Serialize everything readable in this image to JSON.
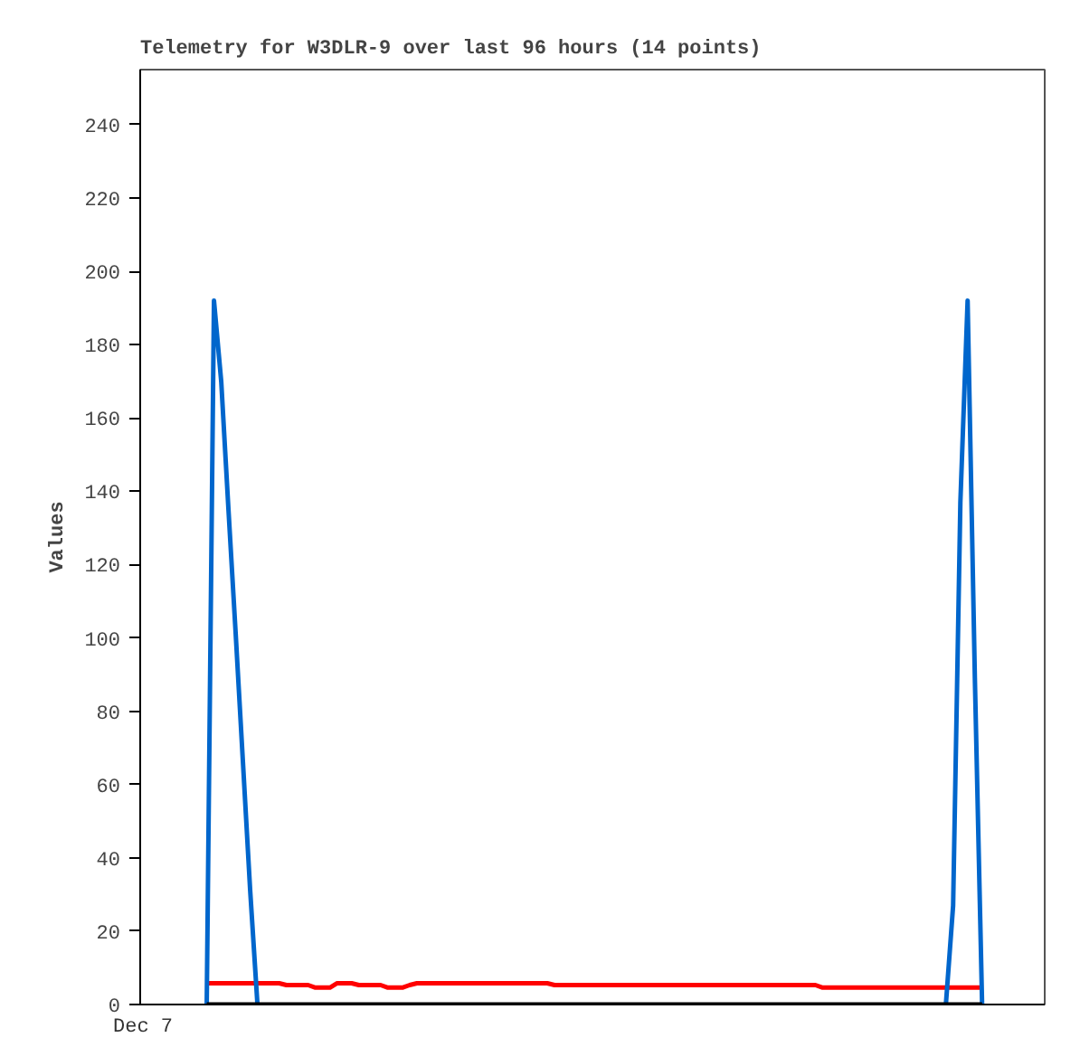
{
  "chart_data": {
    "type": "line",
    "title": "Telemetry for W3DLR-9 over last 96 hours (14 points)",
    "ylabel": "Values",
    "annotations": [
      "Dec 7"
    ],
    "categories": [
      null,
      null,
      null,
      null,
      null,
      null,
      null,
      null,
      null,
      null,
      null,
      null,
      null,
      null,
      null,
      null,
      null,
      null,
      null,
      null,
      null,
      null,
      null,
      null,
      null,
      null,
      null,
      null,
      null,
      null,
      null,
      null,
      null,
      null,
      null,
      null,
      null,
      null,
      null,
      null,
      null,
      null,
      null,
      null,
      null,
      null,
      null,
      null,
      null,
      null,
      null,
      null,
      null,
      null,
      null,
      null,
      null,
      null,
      null,
      null,
      null,
      null,
      null,
      null,
      null,
      null,
      null,
      null,
      null,
      null,
      null,
      null,
      null,
      null,
      null,
      null,
      null,
      null,
      null,
      null,
      null,
      null,
      null,
      null,
      null,
      null,
      null,
      null,
      null,
      null,
      null,
      null,
      null,
      null,
      null,
      null,
      null,
      null,
      null,
      null,
      null,
      null,
      null,
      null,
      null,
      null,
      null,
      null
    ],
    "ylim": [
      0,
      255
    ],
    "yticks": [
      0,
      20,
      40,
      60,
      80,
      100,
      120,
      140,
      160,
      180,
      200,
      220,
      240
    ],
    "grid": false,
    "marker": "none",
    "line_style": "solid",
    "series": [
      {
        "color": "#ff0000",
        "values": [
          5.8,
          5.8,
          5.8,
          5.8,
          5.8,
          5.8,
          5.8,
          5.8,
          5.8,
          5.8,
          5.8,
          5.3,
          5.3,
          5.3,
          5.3,
          4.6,
          4.6,
          4.6,
          5.8,
          5.8,
          5.8,
          5.3,
          5.3,
          5.3,
          5.3,
          4.6,
          4.6,
          4.6,
          5.3,
          5.8,
          5.8,
          5.8,
          5.8,
          5.8,
          5.8,
          5.8,
          5.8,
          5.8,
          5.8,
          5.8,
          5.8,
          5.8,
          5.8,
          5.8,
          5.8,
          5.8,
          5.8,
          5.8,
          5.3,
          5.3,
          5.3,
          5.3,
          5.3,
          5.3,
          5.3,
          5.3,
          5.3,
          5.3,
          5.3,
          5.3,
          5.3,
          5.3,
          5.3,
          5.3,
          5.3,
          5.3,
          5.3,
          5.3,
          5.3,
          5.3,
          5.3,
          5.3,
          5.3,
          5.3,
          5.3,
          5.3,
          5.3,
          5.3,
          5.3,
          5.3,
          5.3,
          5.3,
          5.3,
          5.3,
          5.3,
          4.6,
          4.6,
          4.6,
          4.6,
          4.6,
          4.6,
          4.6,
          4.6,
          4.6,
          4.6,
          4.6,
          4.6,
          4.6,
          4.6,
          4.6,
          4.6,
          4.6,
          4.6,
          4.6,
          4.6,
          4.6,
          4.6,
          4.6
        ]
      },
      {
        "color": "#0066cc",
        "values": [
          0,
          192,
          170,
          135,
          101,
          66,
          31,
          0,
          null,
          null,
          null,
          null,
          null,
          null,
          null,
          null,
          null,
          null,
          null,
          null,
          null,
          null,
          null,
          null,
          null,
          null,
          null,
          null,
          null,
          null,
          null,
          null,
          null,
          null,
          null,
          null,
          null,
          null,
          null,
          null,
          null,
          null,
          null,
          null,
          null,
          null,
          null,
          null,
          null,
          null,
          null,
          null,
          null,
          null,
          null,
          null,
          null,
          null,
          null,
          null,
          null,
          null,
          null,
          null,
          null,
          null,
          null,
          null,
          null,
          null,
          null,
          null,
          null,
          null,
          null,
          null,
          null,
          null,
          null,
          null,
          null,
          null,
          null,
          null,
          null,
          null,
          null,
          null,
          null,
          null,
          null,
          null,
          null,
          null,
          null,
          null,
          null,
          null,
          null,
          null,
          null,
          null,
          0,
          27,
          137,
          192,
          89,
          0
        ]
      },
      {
        "color": "#000000",
        "values": [
          0,
          0,
          0,
          0,
          0,
          0,
          0,
          0,
          0,
          0,
          0,
          0,
          0,
          0,
          0,
          0,
          0,
          0,
          0,
          0,
          0,
          0,
          0,
          0,
          0,
          0,
          0,
          0,
          0,
          0,
          0,
          0,
          0,
          0,
          0,
          0,
          0,
          0,
          0,
          0,
          0,
          0,
          0,
          0,
          0,
          0,
          0,
          0,
          0,
          0,
          0,
          0,
          0,
          0,
          0,
          0,
          0,
          0,
          0,
          0,
          0,
          0,
          0,
          0,
          0,
          0,
          0,
          0,
          0,
          0,
          0,
          0,
          0,
          0,
          0,
          0,
          0,
          0,
          0,
          0,
          0,
          0,
          0,
          0,
          0,
          0,
          0,
          0,
          0,
          0,
          0,
          0,
          0,
          0,
          0,
          0,
          0,
          0,
          0,
          0,
          0,
          0,
          0,
          0,
          0,
          0,
          0,
          0
        ]
      }
    ]
  }
}
